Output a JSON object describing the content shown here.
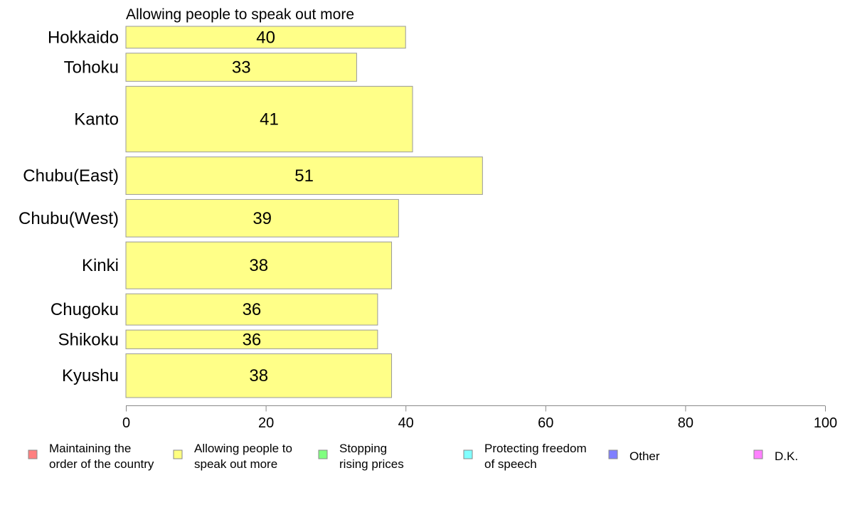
{
  "chart_data": {
    "type": "bar",
    "orientation": "horizontal",
    "title": "Allowing people to speak out more",
    "categories": [
      "Hokkaido",
      "Tohoku",
      "Kanto",
      "Chubu(East)",
      "Chubu(West)",
      "Kinki",
      "Chugoku",
      "Shikoku",
      "Kyushu"
    ],
    "values": [
      40,
      33,
      41,
      51,
      39,
      38,
      36,
      36,
      38
    ],
    "value_labels": [
      "40",
      "33",
      "41",
      "51",
      "39",
      "38",
      "36",
      "36",
      "38"
    ],
    "category_weights": [
      0.7,
      0.9,
      2.1,
      1.2,
      1.2,
      1.5,
      1.0,
      0.6,
      1.4
    ],
    "xlim": [
      0,
      100
    ],
    "xticks": [
      0,
      20,
      40,
      60,
      80,
      100
    ],
    "xtick_labels": [
      "0",
      "20",
      "40",
      "60",
      "80",
      "100"
    ],
    "xlabel": "",
    "ylabel": "",
    "bar_color": "#ffff88",
    "bar_stroke": "#999999",
    "grid": false,
    "legend_position": "bottom",
    "legend": [
      {
        "lines": [
          "Maintaining the",
          "order of the country"
        ],
        "color": "#ff8080"
      },
      {
        "lines": [
          "Allowing people to",
          "speak out more"
        ],
        "color": "#ffff80"
      },
      {
        "lines": [
          "Stopping",
          "rising prices"
        ],
        "color": "#80ff80"
      },
      {
        "lines": [
          "Protecting freedom",
          "of speech"
        ],
        "color": "#80ffff"
      },
      {
        "lines": [
          "Other"
        ],
        "color": "#8080ff"
      },
      {
        "lines": [
          "D.K."
        ],
        "color": "#ff80ff"
      }
    ]
  }
}
